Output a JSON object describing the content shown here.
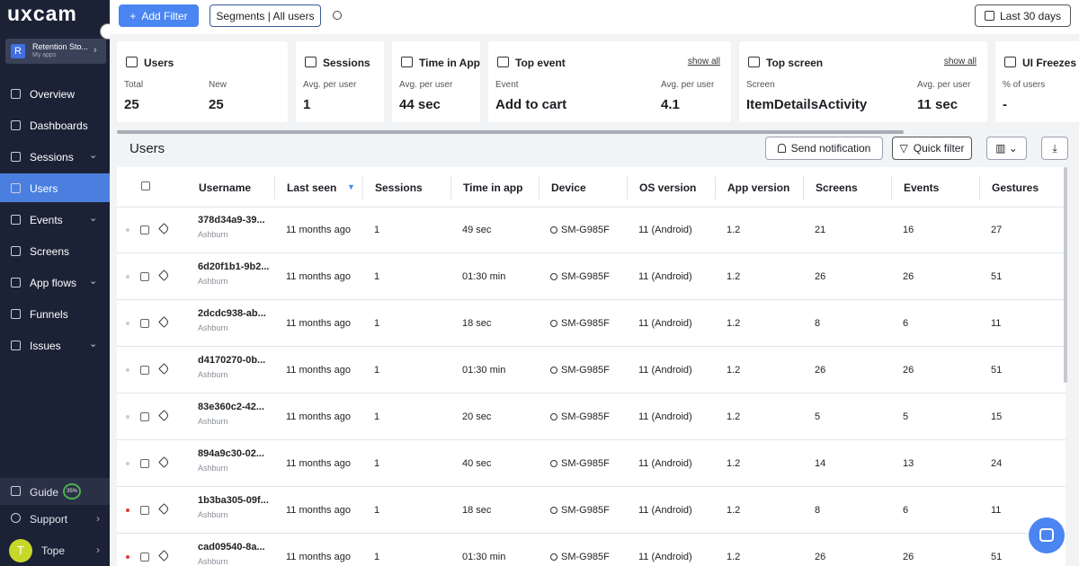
{
  "sidebar": {
    "logo": "uxcam",
    "app": {
      "initial": "R",
      "name": "Retention Sto...",
      "subtitle": "My apps"
    },
    "nav": [
      {
        "label": "Overview"
      },
      {
        "label": "Dashboards"
      },
      {
        "label": "Sessions",
        "expandable": true
      },
      {
        "label": "Users",
        "active": true
      },
      {
        "label": "Events",
        "expandable": true
      },
      {
        "label": "Screens"
      },
      {
        "label": "App flows",
        "expandable": true
      },
      {
        "label": "Funnels"
      },
      {
        "label": "Issues",
        "expandable": true
      }
    ],
    "guide": {
      "label": "Guide",
      "progress": "35%"
    },
    "support": "Support",
    "user": {
      "initial": "T",
      "name": "Tope"
    }
  },
  "toolbar": {
    "add_filter": "Add Filter",
    "segments": "Segments | All users",
    "date_range": "Last 30 days"
  },
  "cards": [
    {
      "title": "Users",
      "stats": [
        {
          "label": "Total",
          "value": "25"
        },
        {
          "label": "New",
          "value": "25"
        }
      ]
    },
    {
      "title": "Sessions",
      "stats": [
        {
          "label": "Avg. per user",
          "value": "1"
        }
      ]
    },
    {
      "title": "Time in App",
      "stats": [
        {
          "label": "Avg. per user",
          "value": "44 sec"
        }
      ]
    },
    {
      "title": "Top event",
      "link": "show all",
      "stats": [
        {
          "label": "Event",
          "value": "Add to cart"
        },
        {
          "label": "Avg. per user",
          "value": "4.1"
        }
      ]
    },
    {
      "title": "Top screen",
      "link": "show all",
      "stats": [
        {
          "label": "Screen",
          "value": "ItemDetailsActivity"
        },
        {
          "label": "Avg. per user",
          "value": "11 sec"
        }
      ]
    },
    {
      "title": "UI Freezes",
      "stats": [
        {
          "label": "% of users",
          "value": "-"
        }
      ]
    }
  ],
  "table": {
    "title": "Users",
    "send_notification": "Send notification",
    "quick_filter": "Quick filter",
    "columns": [
      "Username",
      "Last seen",
      "Sessions",
      "Time in app",
      "Device",
      "OS version",
      "App version",
      "Screens",
      "Events",
      "Gestures"
    ],
    "rows": [
      {
        "dot": "#c9ccd3",
        "cells": [
          "378d34a9-39...",
          "11 months ago",
          "1",
          "49 sec",
          "SM-G985F",
          "11 (Android)",
          "1.2",
          "21",
          "16",
          "27"
        ],
        "location": "Ashburn"
      },
      {
        "dot": "#c9ccd3",
        "cells": [
          "6d20f1b1-9b2...",
          "11 months ago",
          "1",
          "01:30 min",
          "SM-G985F",
          "11 (Android)",
          "1.2",
          "26",
          "26",
          "51"
        ],
        "location": "Ashburn"
      },
      {
        "dot": "#c9ccd3",
        "cells": [
          "2dcdc938-ab...",
          "11 months ago",
          "1",
          "18 sec",
          "SM-G985F",
          "11 (Android)",
          "1.2",
          "8",
          "6",
          "11"
        ],
        "location": "Ashburn"
      },
      {
        "dot": "#c9ccd3",
        "cells": [
          "d4170270-0b...",
          "11 months ago",
          "1",
          "01:30 min",
          "SM-G985F",
          "11 (Android)",
          "1.2",
          "26",
          "26",
          "51"
        ],
        "location": "Ashburn"
      },
      {
        "dot": "#c9ccd3",
        "cells": [
          "83e360c2-42...",
          "11 months ago",
          "1",
          "20 sec",
          "SM-G985F",
          "11 (Android)",
          "1.2",
          "5",
          "5",
          "15"
        ],
        "location": "Ashburn"
      },
      {
        "dot": "#c9ccd3",
        "cells": [
          "894a9c30-02...",
          "11 months ago",
          "1",
          "40 sec",
          "SM-G985F",
          "11 (Android)",
          "1.2",
          "14",
          "13",
          "24"
        ],
        "location": "Ashburn"
      },
      {
        "dot": "#e53935",
        "cells": [
          "1b3ba305-09f...",
          "11 months ago",
          "1",
          "18 sec",
          "SM-G985F",
          "11 (Android)",
          "1.2",
          "8",
          "6",
          "11"
        ],
        "location": "Ashburn"
      },
      {
        "dot": "#e53935",
        "cells": [
          "cad09540-8a...",
          "11 months ago",
          "1",
          "01:30 min",
          "SM-G985F",
          "11 (Android)",
          "1.2",
          "26",
          "26",
          "51"
        ],
        "location": "Ashburn"
      }
    ]
  }
}
